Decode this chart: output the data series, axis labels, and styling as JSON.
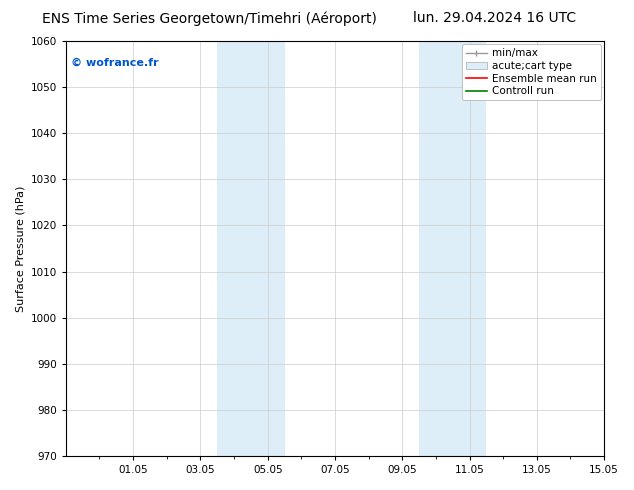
{
  "title_left": "ENS Time Series Georgetown/Timehri (Aéroport)",
  "title_right": "lun. 29.04.2024 16 UTC",
  "ylabel": "Surface Pressure (hPa)",
  "ylim": [
    970,
    1060
  ],
  "yticks": [
    970,
    980,
    990,
    1000,
    1010,
    1020,
    1030,
    1040,
    1050,
    1060
  ],
  "xlim": [
    0,
    16
  ],
  "xtick_labels": [
    "01.05",
    "03.05",
    "05.05",
    "07.05",
    "09.05",
    "11.05",
    "13.05",
    "15.05"
  ],
  "xtick_positions": [
    2,
    4,
    6,
    8,
    10,
    12,
    14,
    16
  ],
  "shaded_bands": [
    {
      "x_start": 4.5,
      "x_end": 5.5
    },
    {
      "x_start": 5.5,
      "x_end": 6.5
    },
    {
      "x_start": 10.5,
      "x_end": 11.5
    },
    {
      "x_start": 11.5,
      "x_end": 12.5
    }
  ],
  "shaded_color": "#ddeef8",
  "grid_color": "#cccccc",
  "background_color": "#ffffff",
  "watermark_text": "© wofrance.fr",
  "watermark_color": "#0055cc",
  "legend_items": [
    {
      "label": "min/max",
      "color": "#aaaaaa"
    },
    {
      "label": "acute;cart type",
      "color": "#ddeef8"
    },
    {
      "label": "Ensemble mean run",
      "color": "#ff0000"
    },
    {
      "label": "Controll run",
      "color": "#008000"
    }
  ],
  "title_fontsize": 10,
  "axis_label_fontsize": 8,
  "tick_fontsize": 7.5,
  "legend_fontsize": 7.5,
  "watermark_fontsize": 8
}
